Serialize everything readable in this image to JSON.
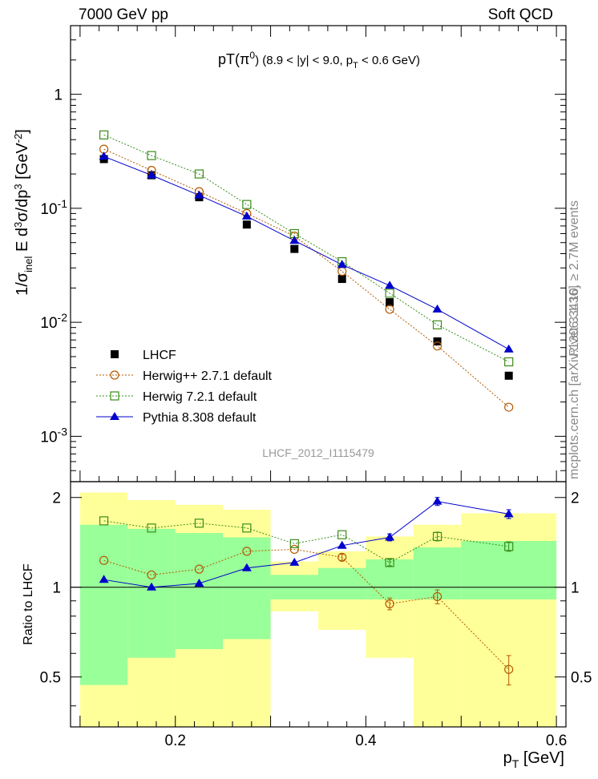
{
  "header": {
    "left": "7000 GeV pp",
    "right": "Soft QCD",
    "title": "pT(π⁰) (8.9 < |y| < 9.0, p_T < 0.6 GeV)",
    "watermark": "LHCF_2012_I1115479",
    "side_top": "Rivet 3.1.10, ≥ 2.7M events",
    "side_bottom": "mcplots.cern.ch [arXiv:1306.3436]"
  },
  "chart_data": {
    "type": "scatter",
    "title": "pT(π⁰) (8.9 < |y| < 9.0, p_T < 0.6 GeV)",
    "xlabel": "p_T [GeV]",
    "ylabel": "1/σ_inel E d³σ/dp³ [GeV⁻²]",
    "ratio_ylabel": "Ratio to LHCF",
    "xlim": [
      0.09,
      0.61
    ],
    "ylim": [
      0.0004,
      4
    ],
    "yscale": "log",
    "ratio_ylim": [
      0.34,
      2.26
    ],
    "x_ticks": [
      "0.2",
      "0.4",
      "0.6"
    ],
    "y_ticks": [
      "10⁻³",
      "10⁻²",
      "10⁻¹",
      "1"
    ],
    "ratio_ticks": [
      "0.5",
      "1",
      "2"
    ],
    "x": [
      0.125,
      0.175,
      0.225,
      0.275,
      0.325,
      0.375,
      0.425,
      0.475,
      0.55
    ],
    "bin_edges": [
      0.1,
      0.15,
      0.2,
      0.25,
      0.3,
      0.35,
      0.4,
      0.45,
      0.5,
      0.6
    ],
    "series": [
      {
        "name": "LHCF",
        "color": "#000000",
        "marker": "filled-square",
        "values": [
          0.27,
          0.195,
          0.125,
          0.072,
          0.044,
          0.024,
          0.015,
          0.0068,
          0.0034
        ]
      },
      {
        "name": "Herwig++ 2.7.1 default",
        "color": "#b35900",
        "marker": "open-circle",
        "dash": "dotted",
        "values": [
          0.33,
          0.215,
          0.14,
          0.09,
          0.057,
          0.028,
          0.013,
          0.0062,
          0.0018
        ],
        "ratio": [
          1.23,
          1.1,
          1.15,
          1.32,
          1.34,
          1.26,
          0.88,
          0.93,
          0.53
        ],
        "ratio_err": [
          0,
          0,
          0,
          0,
          0,
          0.03,
          0.04,
          0.05,
          0.06
        ]
      },
      {
        "name": "Herwig 7.2.1 default",
        "color": "#3a8c1a",
        "marker": "open-square",
        "dash": "dotted",
        "values": [
          0.44,
          0.29,
          0.2,
          0.108,
          0.06,
          0.034,
          0.018,
          0.0095,
          0.0045
        ],
        "ratio": [
          1.67,
          1.58,
          1.64,
          1.58,
          1.4,
          1.5,
          1.21,
          1.48,
          1.37
        ],
        "ratio_err": [
          0,
          0,
          0,
          0,
          0,
          0,
          0.03,
          0.05,
          0.05
        ]
      },
      {
        "name": "Pythia 8.308 default",
        "color": "#0000cc",
        "marker": "filled-triangle",
        "values": [
          0.285,
          0.195,
          0.13,
          0.085,
          0.052,
          0.032,
          0.021,
          0.013,
          0.0058
        ],
        "ratio": [
          1.06,
          1.0,
          1.03,
          1.16,
          1.21,
          1.38,
          1.47,
          1.94,
          1.76
        ],
        "ratio_err": [
          0,
          0,
          0,
          0,
          0,
          0,
          0.04,
          0.06,
          0.06
        ]
      }
    ],
    "ratio_band_green": [
      [
        0.47,
        1.62
      ],
      [
        0.58,
        1.57
      ],
      [
        0.62,
        1.52
      ],
      [
        0.67,
        1.47
      ],
      [
        0.91,
        1.1
      ],
      [
        0.91,
        1.16
      ],
      [
        0.91,
        1.24
      ],
      [
        0.91,
        1.36
      ],
      [
        0.91,
        1.43
      ]
    ],
    "ratio_band_yellow": [
      [
        0.34,
        2.08
      ],
      [
        0.34,
        1.96
      ],
      [
        0.34,
        1.89
      ],
      [
        0.34,
        1.82
      ],
      [
        0.83,
        1.22
      ],
      [
        0.72,
        1.32
      ],
      [
        0.58,
        1.48
      ],
      [
        0.34,
        1.62
      ],
      [
        0.34,
        1.77
      ]
    ],
    "legend_position": "lower-left"
  }
}
